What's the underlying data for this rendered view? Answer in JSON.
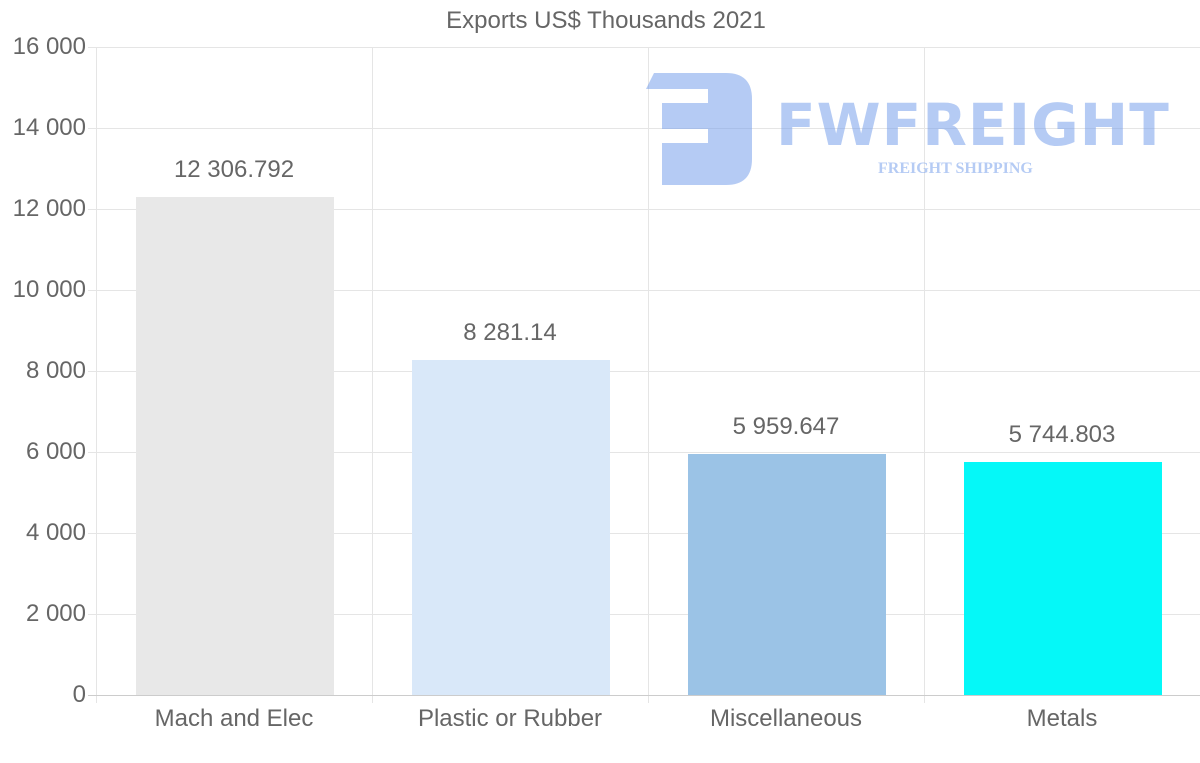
{
  "chart_data": {
    "type": "bar",
    "title": "Exports US$ Thousands 2021",
    "xlabel": "",
    "ylabel": "",
    "categories": [
      "Mach and Elec",
      "Plastic or Rubber",
      "Miscellaneous",
      "Metals"
    ],
    "values": [
      12306.792,
      8281.14,
      5959.647,
      5744.803
    ],
    "value_labels": [
      "12 306.792",
      "8 281.14",
      "5 959.647",
      "5 744.803"
    ],
    "colors": [
      "#e8e8e8",
      "#d9e8f9",
      "#9bc3e6",
      "#05f8f8"
    ],
    "ylim": [
      0,
      16000
    ],
    "yticks": [
      0,
      2000,
      4000,
      6000,
      8000,
      10000,
      12000,
      14000,
      16000
    ],
    "ytick_labels": [
      "0",
      "2 000",
      "4 000",
      "6 000",
      "8 000",
      "10 000",
      "12 000",
      "14 000",
      "16 000"
    ],
    "grid": true,
    "legend": null
  },
  "watermark": {
    "brand": "FWFREIGHT",
    "tagline": "FREIGHT SHIPPING"
  }
}
